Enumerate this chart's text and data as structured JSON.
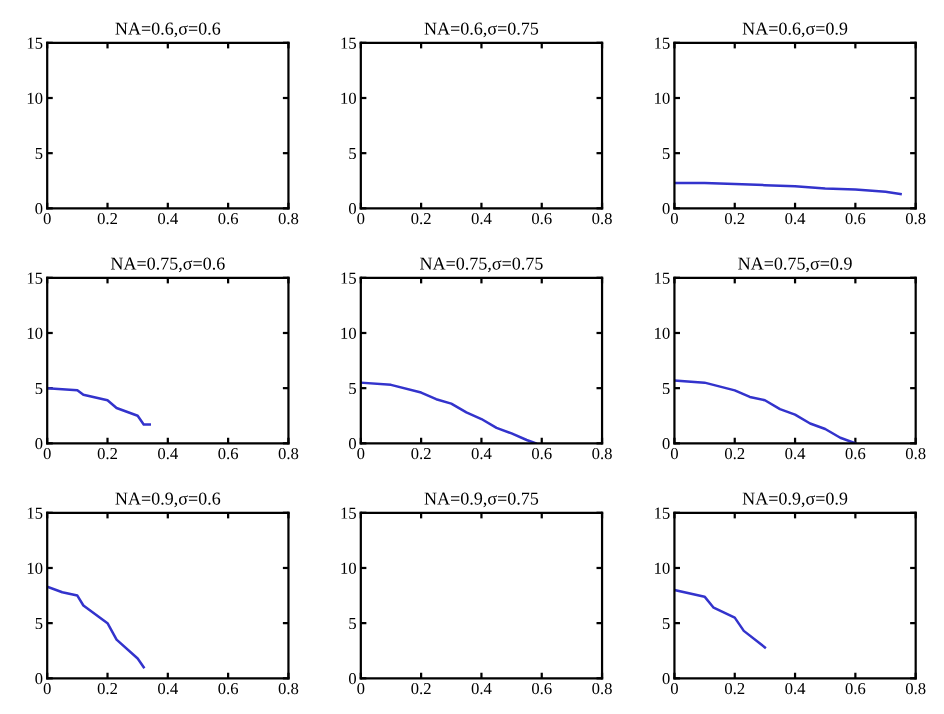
{
  "chart_data": [
    {
      "type": "line",
      "title": "NA=0.6,σ=0.6",
      "xlim": [
        0,
        0.8
      ],
      "ylim": [
        0,
        15
      ],
      "xticks": [
        0,
        0.2,
        0.4,
        0.6,
        0.8
      ],
      "yticks": [
        0,
        5,
        10,
        15
      ],
      "grid": false,
      "legend": false
    },
    {
      "type": "line",
      "title": "NA=0.6,σ=0.75",
      "xlim": [
        0,
        0.8
      ],
      "ylim": [
        0,
        15
      ],
      "xticks": [
        0,
        0.2,
        0.4,
        0.6,
        0.8
      ],
      "yticks": [
        0,
        5,
        10,
        15
      ],
      "grid": false,
      "legend": false
    },
    {
      "type": "line",
      "title": "NA=0.6,σ=0.9",
      "x": [
        0,
        0.1,
        0.2,
        0.3,
        0.4,
        0.5,
        0.6,
        0.7,
        0.75
      ],
      "series": [
        {
          "color": "#3333cc",
          "values": [
            2.3,
            2.3,
            2.2,
            2.1,
            2.0,
            1.8,
            1.7,
            1.5,
            1.3
          ]
        }
      ],
      "xlim": [
        0,
        0.8
      ],
      "ylim": [
        0,
        15
      ],
      "xticks": [
        0,
        0.2,
        0.4,
        0.6,
        0.8
      ],
      "yticks": [
        0,
        5,
        10,
        15
      ],
      "grid": false,
      "legend": false
    },
    {
      "type": "line",
      "title": "NA=0.75,σ=0.6",
      "x": [
        0,
        0.05,
        0.1,
        0.12,
        0.2,
        0.23,
        0.3,
        0.32,
        0.34
      ],
      "series": [
        {
          "color": "#3333cc",
          "values": [
            5.0,
            4.9,
            4.8,
            4.4,
            3.9,
            3.2,
            2.5,
            1.7,
            1.7
          ]
        }
      ],
      "xlim": [
        0,
        0.8
      ],
      "ylim": [
        0,
        15
      ],
      "xticks": [
        0,
        0.2,
        0.4,
        0.6,
        0.8
      ],
      "yticks": [
        0,
        5,
        10,
        15
      ],
      "grid": false,
      "legend": false
    },
    {
      "type": "line",
      "title": "NA=0.75,σ=0.75",
      "x": [
        0,
        0.1,
        0.2,
        0.25,
        0.3,
        0.35,
        0.4,
        0.45,
        0.5,
        0.55,
        0.58
      ],
      "series": [
        {
          "color": "#3333cc",
          "values": [
            5.5,
            5.3,
            4.6,
            4.0,
            3.6,
            2.8,
            2.2,
            1.4,
            0.9,
            0.3,
            0
          ]
        }
      ],
      "xlim": [
        0,
        0.8
      ],
      "ylim": [
        0,
        15
      ],
      "xticks": [
        0,
        0.2,
        0.4,
        0.6,
        0.8
      ],
      "yticks": [
        0,
        5,
        10,
        15
      ],
      "grid": false,
      "legend": false
    },
    {
      "type": "line",
      "title": "NA=0.75,σ=0.9",
      "x": [
        0,
        0.1,
        0.2,
        0.25,
        0.3,
        0.35,
        0.4,
        0.45,
        0.5,
        0.55,
        0.6
      ],
      "series": [
        {
          "color": "#3333cc",
          "values": [
            5.7,
            5.5,
            4.8,
            4.2,
            3.9,
            3.1,
            2.6,
            1.8,
            1.3,
            0.5,
            0
          ]
        }
      ],
      "xlim": [
        0,
        0.8
      ],
      "ylim": [
        0,
        15
      ],
      "xticks": [
        0,
        0.2,
        0.4,
        0.6,
        0.8
      ],
      "yticks": [
        0,
        5,
        10,
        15
      ],
      "grid": false,
      "legend": false
    },
    {
      "type": "line",
      "title": "NA=0.9,σ=0.6",
      "x": [
        0,
        0.05,
        0.1,
        0.12,
        0.2,
        0.23,
        0.3,
        0.32
      ],
      "series": [
        {
          "color": "#3333cc",
          "values": [
            8.3,
            7.8,
            7.5,
            6.6,
            5.0,
            3.5,
            1.8,
            1.0
          ]
        }
      ],
      "xlim": [
        0,
        0.8
      ],
      "ylim": [
        0,
        15
      ],
      "xticks": [
        0,
        0.2,
        0.4,
        0.6,
        0.8
      ],
      "yticks": [
        0,
        5,
        10,
        15
      ],
      "grid": false,
      "legend": false
    },
    {
      "type": "line",
      "title": "NA=0.9,σ=0.75",
      "xlim": [
        0,
        0.8
      ],
      "ylim": [
        0,
        15
      ],
      "xticks": [
        0,
        0.2,
        0.4,
        0.6,
        0.8
      ],
      "yticks": [
        0,
        5,
        10,
        15
      ],
      "grid": false,
      "legend": false
    },
    {
      "type": "line",
      "title": "NA=0.9,σ=0.9",
      "x": [
        0,
        0.1,
        0.13,
        0.2,
        0.23,
        0.3
      ],
      "series": [
        {
          "color": "#3333cc",
          "values": [
            8.0,
            7.4,
            6.4,
            5.5,
            4.3,
            2.8
          ]
        }
      ],
      "xlim": [
        0,
        0.8
      ],
      "ylim": [
        0,
        15
      ],
      "xticks": [
        0,
        0.2,
        0.4,
        0.6,
        0.8
      ],
      "yticks": [
        0,
        5,
        10,
        15
      ],
      "grid": false,
      "legend": false
    }
  ]
}
